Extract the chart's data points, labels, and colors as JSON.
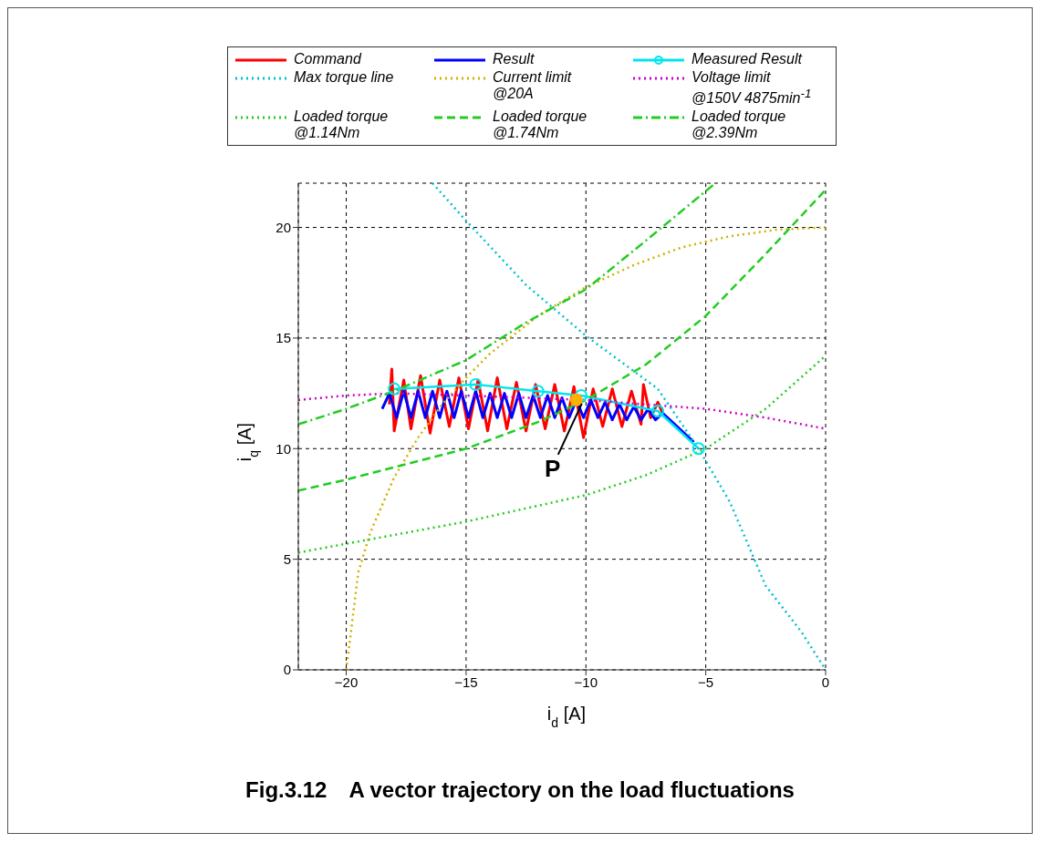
{
  "chart_data": {
    "type": "line",
    "title": "Fig.3.12　A vector trajectory on the load fluctuations",
    "xlabel": "i$_{d}$ [A]",
    "ylabel": "i$_{q}$ [A]",
    "xlim": [
      -22,
      0
    ],
    "xticks": [
      -20,
      -15,
      -10,
      -5,
      0
    ],
    "ylim": [
      0,
      22
    ],
    "yticks": [
      0,
      5,
      10,
      15,
      20
    ],
    "grid": true,
    "legend": "top",
    "marker": "none",
    "annotations": [
      {
        "text": "P",
        "x": -10.4,
        "y": 12.2
      }
    ],
    "series": [
      {
        "name": "Command",
        "color": "#ff0000",
        "line_style": "solid",
        "x": [
          -18.2,
          -18.1,
          -18.0,
          -17.6,
          -17.3,
          -16.9,
          -16.5,
          -16.1,
          -15.7,
          -15.3,
          -14.9,
          -14.5,
          -14.1,
          -13.7,
          -13.3,
          -12.9,
          -12.5,
          -12.1,
          -11.7,
          -11.3,
          -10.9,
          -10.5,
          -10.1,
          -9.7,
          -9.3,
          -8.9,
          -8.5,
          -8.1,
          -7.7,
          -7.6,
          -7.3,
          -7.0,
          -6.8
        ],
        "values": [
          12.0,
          13.6,
          10.8,
          13.1,
          10.9,
          13.3,
          10.7,
          13.1,
          11.0,
          13.2,
          10.9,
          13.1,
          10.8,
          13.2,
          10.9,
          13.0,
          10.8,
          12.9,
          10.9,
          12.9,
          10.8,
          12.8,
          10.5,
          12.7,
          11.0,
          12.7,
          11.0,
          12.6,
          11.1,
          12.9,
          11.4,
          12.1,
          11.6
        ]
      },
      {
        "name": "Result",
        "color": "#0000ff",
        "line_style": "solid",
        "x": [
          -18.5,
          -18.2,
          -17.9,
          -17.6,
          -17.3,
          -17.0,
          -16.7,
          -16.4,
          -16.1,
          -15.8,
          -15.5,
          -15.2,
          -14.9,
          -14.6,
          -14.3,
          -14.0,
          -13.7,
          -13.4,
          -13.1,
          -12.8,
          -12.5,
          -12.2,
          -11.9,
          -11.6,
          -11.3,
          -11.0,
          -10.7,
          -10.4,
          -10.1,
          -9.8,
          -9.5,
          -9.2,
          -8.9,
          -8.6,
          -8.3,
          -8.0,
          -7.7,
          -7.4,
          -7.1,
          -6.8,
          -6.5,
          -6.0,
          -5.5
        ],
        "values": [
          11.8,
          12.5,
          11.4,
          12.6,
          11.4,
          12.6,
          11.4,
          12.6,
          11.4,
          12.6,
          11.4,
          12.6,
          11.4,
          12.6,
          11.4,
          12.5,
          11.4,
          12.5,
          11.4,
          12.5,
          11.4,
          12.4,
          11.4,
          12.4,
          11.4,
          12.3,
          11.4,
          12.2,
          11.4,
          12.2,
          11.4,
          12.1,
          11.3,
          12.0,
          11.3,
          11.9,
          11.3,
          11.8,
          11.3,
          11.6,
          11.3,
          10.8,
          10.3
        ]
      },
      {
        "name": "Measured Result",
        "color": "#00e5ee",
        "line_style": "solid",
        "marker": "circle",
        "x": [
          -18,
          -14.6,
          -12,
          -10.2,
          -7,
          -5.3
        ],
        "values": [
          12.7,
          12.9,
          12.6,
          12.4,
          11.7,
          10.0
        ]
      },
      {
        "name": "Max torque line",
        "color": "#00c0d0",
        "line_style": "dotted",
        "x": [
          -16.4,
          -15,
          -12.5,
          -10,
          -7,
          -5.3,
          -4,
          -2.5,
          -1,
          0
        ],
        "values": [
          22,
          20.3,
          17.4,
          15.1,
          12.7,
          10.0,
          7.6,
          3.8,
          1.7,
          0
        ]
      },
      {
        "name": "Current limit\n@20A",
        "color": "#d0b000",
        "line_style": "dotted",
        "x": [
          -20,
          -19.5,
          -19,
          -18,
          -17,
          -16,
          -15,
          -14,
          -12,
          -10,
          -8,
          -6,
          -4,
          -2,
          0
        ],
        "values": [
          0,
          4.4,
          6.2,
          8.7,
          10.5,
          12,
          13.2,
          14.3,
          16,
          17.3,
          18.3,
          19.1,
          19.6,
          19.9,
          20
        ]
      },
      {
        "name": "Voltage limit\n@150V 4875min$^{-1}$",
        "color": "#cc00cc",
        "line_style": "dotted",
        "x": [
          -22,
          -20,
          -18,
          -15,
          -10,
          -5,
          -2.5,
          0
        ],
        "values": [
          12.2,
          12.4,
          12.5,
          12.4,
          12.2,
          11.8,
          11.4,
          10.9
        ]
      },
      {
        "name": "Loaded torque\n@1.14Nm",
        "color": "#22cc22",
        "line_style": "dotted",
        "x": [
          -22,
          -20,
          -15,
          -10,
          -7.5,
          -5,
          -2.5,
          0
        ],
        "values": [
          5.3,
          5.7,
          6.7,
          7.9,
          8.8,
          10,
          11.8,
          14.2
        ]
      },
      {
        "name": "Loaded torque\n@1.74Nm",
        "color": "#22cc22",
        "line_style": "dashed",
        "x": [
          -22,
          -20,
          -15,
          -12,
          -10,
          -7.5,
          -5,
          -2.5,
          0
        ],
        "values": [
          8.1,
          8.6,
          10.0,
          11.2,
          12.2,
          13.8,
          16,
          18.8,
          21.7
        ]
      },
      {
        "name": "Loaded torque\n@2.39Nm",
        "color": "#22cc22",
        "line_style": "dashdot",
        "x": [
          -22,
          -20,
          -18,
          -15,
          -12.5,
          -10,
          -7.5,
          -4.6
        ],
        "values": [
          11.1,
          11.8,
          12.6,
          14.0,
          15.7,
          17.2,
          19.4,
          22
        ]
      },
      {
        "type": "scatter",
        "color": "#ffb000",
        "marker": "circle",
        "x": [
          -10.4
        ],
        "values": [
          12.2
        ]
      }
    ]
  }
}
